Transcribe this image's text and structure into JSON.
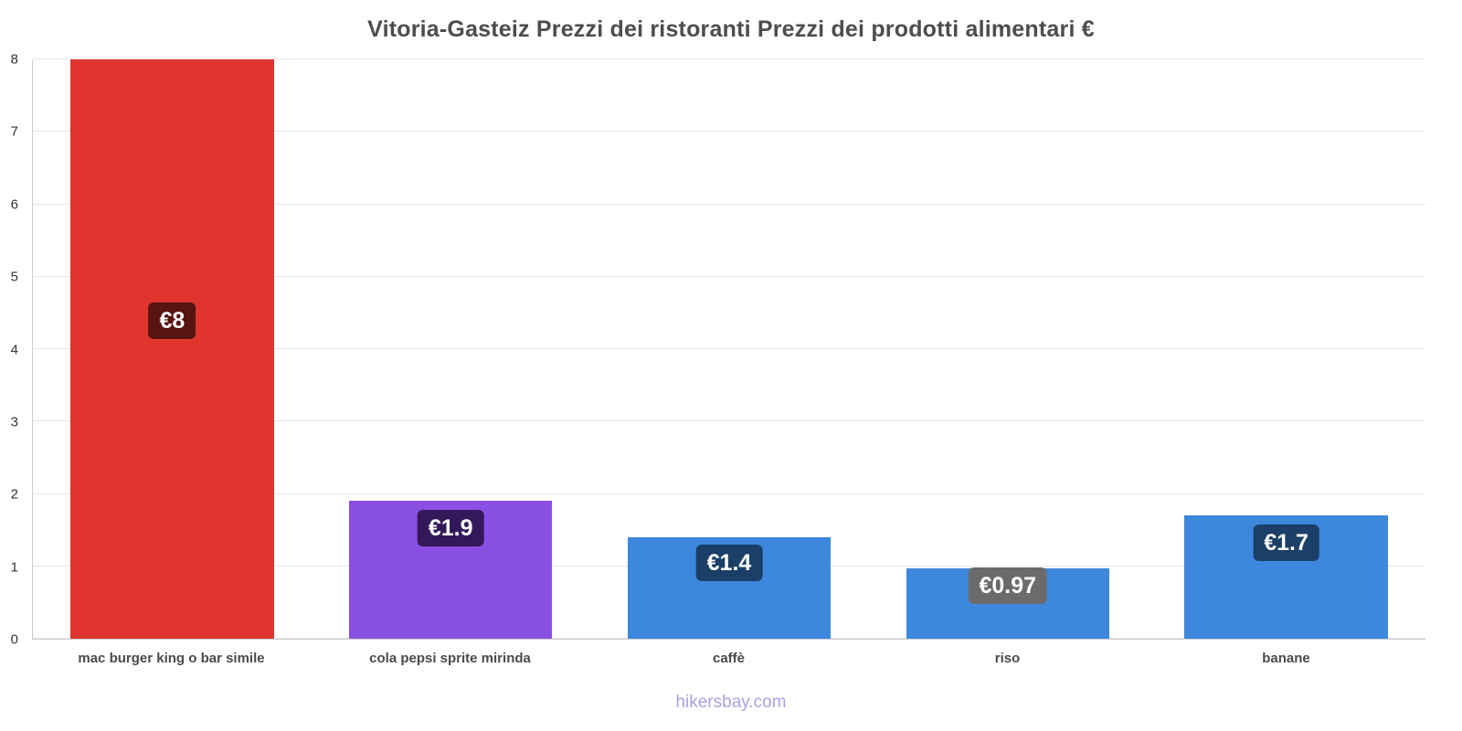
{
  "title": "Vitoria-Gasteiz Prezzi dei ristoranti Prezzi dei prodotti alimentari €",
  "footer": "hikersbay.com",
  "chart_data": {
    "type": "bar",
    "title": "Vitoria-Gasteiz Prezzi dei ristoranti Prezzi dei prodotti alimentari €",
    "categories": [
      "mac burger king o bar simile",
      "cola pepsi sprite mirinda",
      "caffè",
      "riso",
      "banane"
    ],
    "values": [
      8,
      1.9,
      1.4,
      0.97,
      1.7
    ],
    "data_labels": [
      "€8",
      "€1.9",
      "€1.4",
      "€0.97",
      "€1.7"
    ],
    "bar_colors": [
      "#e0352f",
      "#8a4fe3",
      "#3d87dd",
      "#3d87dd",
      "#3d87dd"
    ],
    "label_bg_colors": [
      "#571410",
      "#34195a",
      "#1b3f66",
      "#6b6b6b",
      "#1b3f66"
    ],
    "xlabel": "",
    "ylabel": "",
    "ylim": [
      0,
      8
    ],
    "yticks": [
      0,
      1,
      2,
      3,
      4,
      5,
      6,
      7,
      8
    ],
    "grid": true,
    "legend": false
  }
}
